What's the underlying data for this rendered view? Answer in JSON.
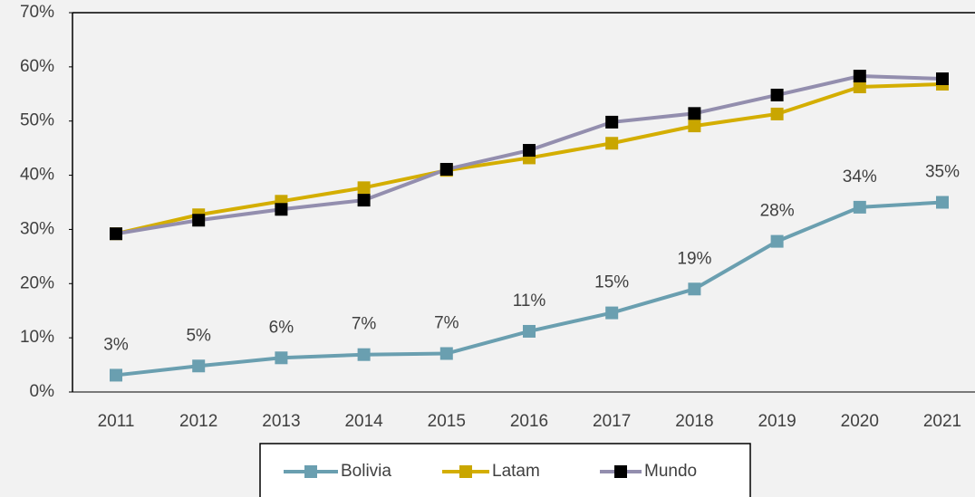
{
  "chart_data": {
    "type": "line",
    "categories": [
      "2011",
      "2012",
      "2013",
      "2014",
      "2015",
      "2016",
      "2017",
      "2018",
      "2019",
      "2020",
      "2021"
    ],
    "series": [
      {
        "name": "Bolivia",
        "color": "#6a9fb0",
        "marker_color": "#6a9fb0",
        "values": [
          3.1,
          4.8,
          6.3,
          6.9,
          7.1,
          11.2,
          14.6,
          19.0,
          27.8,
          34.1,
          35.0
        ],
        "value_labels": [
          "3%",
          "5%",
          "6%",
          "7%",
          "7%",
          "11%",
          "15%",
          "19%",
          "28%",
          "34%",
          "35%"
        ]
      },
      {
        "name": "Latam",
        "color": "#d4ae00",
        "marker_color": "#c9a600",
        "values": [
          29.2,
          32.7,
          35.2,
          37.7,
          40.9,
          43.2,
          45.9,
          49.1,
          51.3,
          56.3,
          56.8
        ]
      },
      {
        "name": "Mundo",
        "color": "#938eae",
        "marker_color": "#000000",
        "values": [
          29.2,
          31.7,
          33.7,
          35.4,
          41.1,
          44.6,
          49.8,
          51.4,
          54.8,
          58.3,
          57.8
        ]
      }
    ],
    "ylim": [
      0,
      70
    ],
    "yticks": [
      {
        "value": 0,
        "label": "0%"
      },
      {
        "value": 10,
        "label": "10%"
      },
      {
        "value": 20,
        "label": "20%"
      },
      {
        "value": 30,
        "label": "30%"
      },
      {
        "value": 40,
        "label": "40%"
      },
      {
        "value": 50,
        "label": "50%"
      },
      {
        "value": 60,
        "label": "60%"
      },
      {
        "value": 70,
        "label": "70%"
      }
    ],
    "grid": false,
    "legend": "bottom"
  }
}
